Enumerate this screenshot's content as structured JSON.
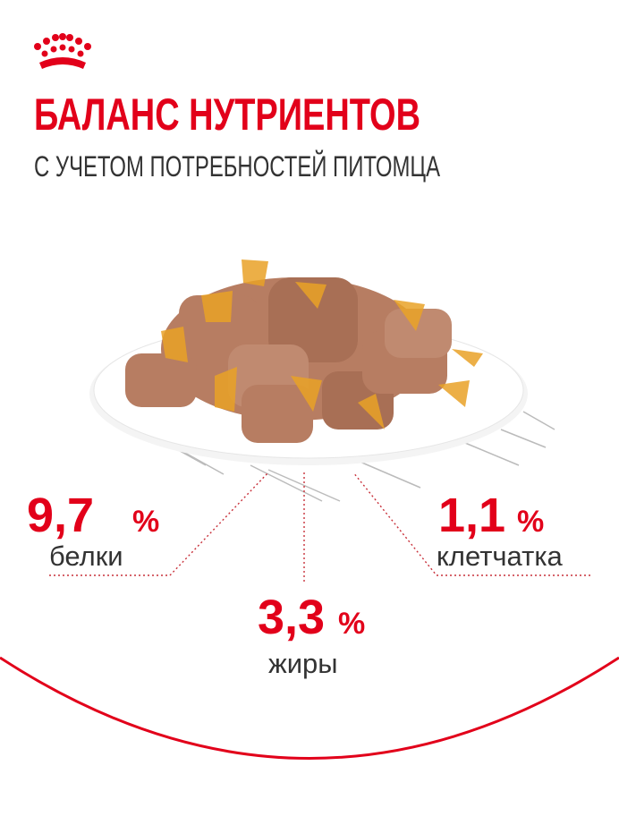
{
  "header": {
    "title": "БАЛАНС НУТРИЕНТОВ",
    "subtitle": "С УЧЕТОМ ПОТРЕБНОСТЕЙ ПИТОМЦА"
  },
  "stats": [
    {
      "value": "9,7",
      "unit": "%",
      "label": "белки"
    },
    {
      "value": "3,3",
      "unit": "%",
      "label": "жиры"
    },
    {
      "value": "1,1",
      "unit": "%",
      "label": "клетчатка"
    }
  ]
}
